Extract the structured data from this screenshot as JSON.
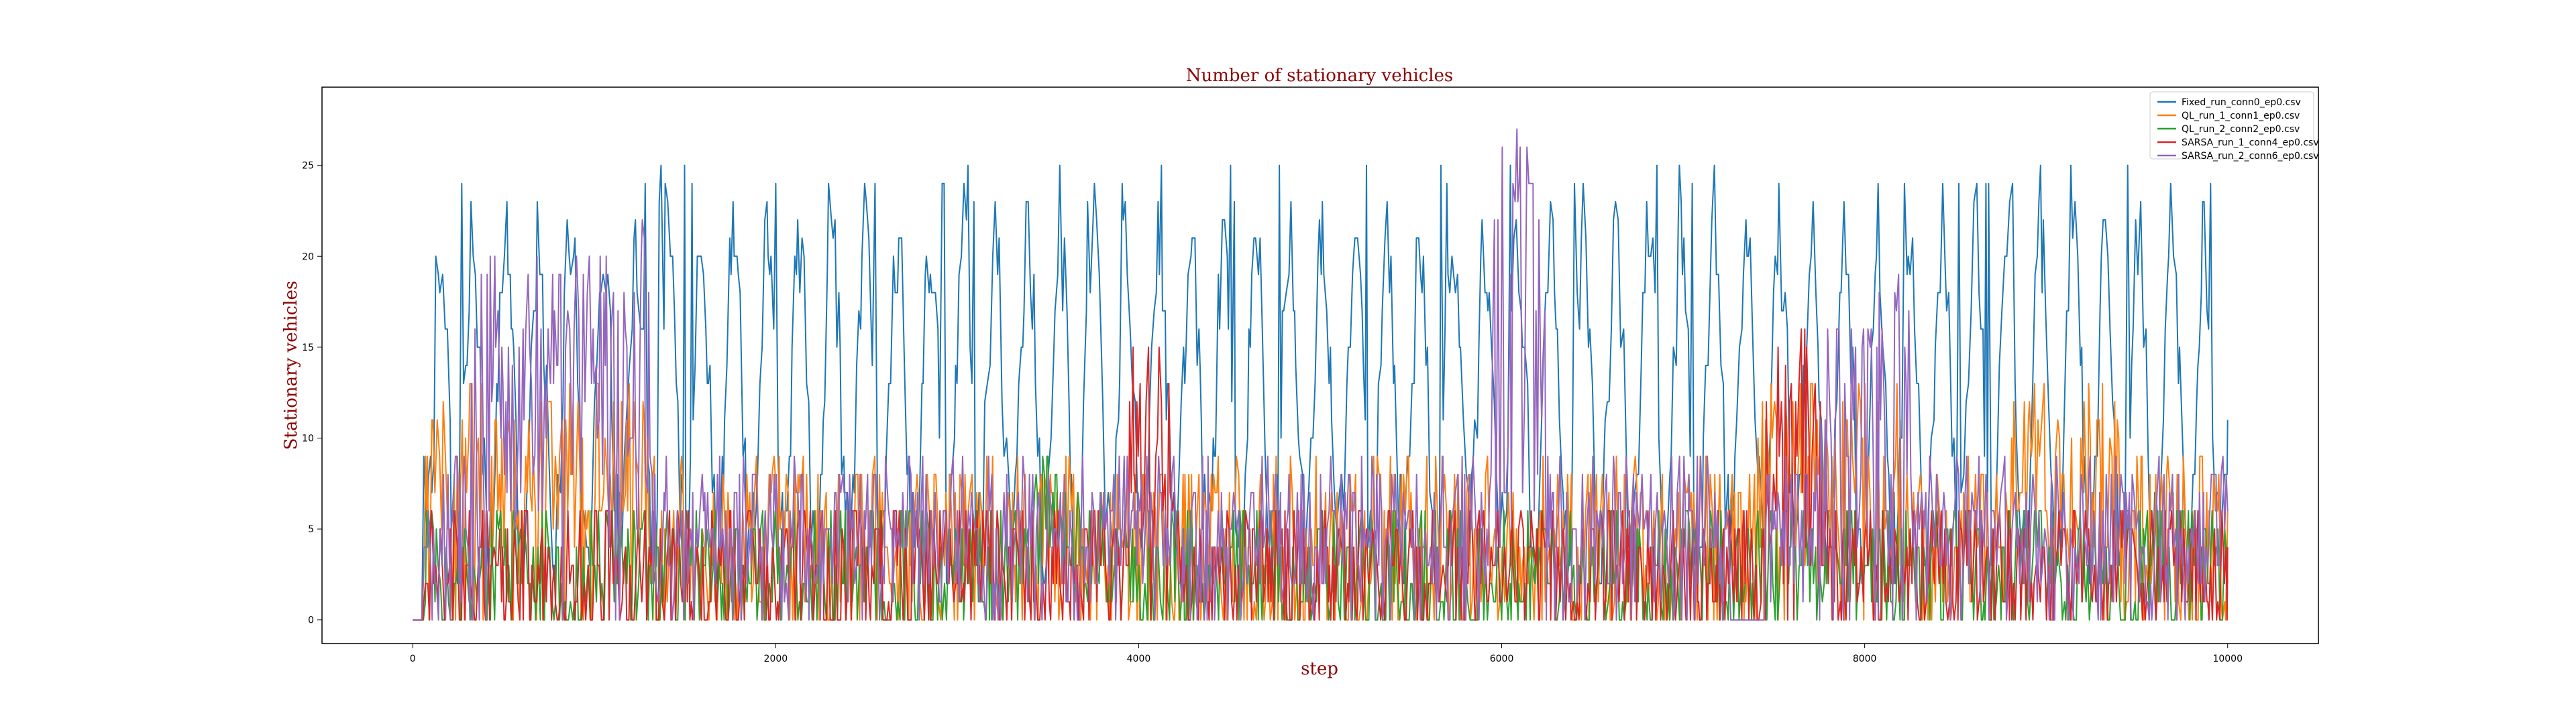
{
  "chart_data": {
    "type": "line",
    "title": "Number of stationary vehicles",
    "xlabel": "step",
    "ylabel": "Stationary vehicles",
    "xlim": [
      -500,
      10500
    ],
    "ylim": [
      -1.3,
      29.3
    ],
    "xticks": [
      0,
      2000,
      4000,
      6000,
      8000,
      10000
    ],
    "yticks": [
      0,
      5,
      10,
      15,
      20,
      25
    ],
    "grid": false,
    "legend_position": "top-right",
    "series": [
      {
        "name": "Fixed_run_conn0_ep0.csv",
        "color": "#1f77b4",
        "kind": "fixed",
        "seed": 11
      },
      {
        "name": "QL_run_1_conn1_ep0.csv",
        "color": "#ff7f0e",
        "kind": "ql1",
        "seed": 23
      },
      {
        "name": "QL_run_2_conn2_ep0.csv",
        "color": "#2ca02c",
        "kind": "ql2",
        "seed": 37
      },
      {
        "name": "SARSA_run_1_conn4_ep0.csv",
        "color": "#d62728",
        "kind": "sarsa1",
        "seed": 51
      },
      {
        "name": "SARSA_run_2_conn6_ep0.csv",
        "color": "#9467bd",
        "kind": "sarsa2",
        "seed": 67
      }
    ]
  }
}
